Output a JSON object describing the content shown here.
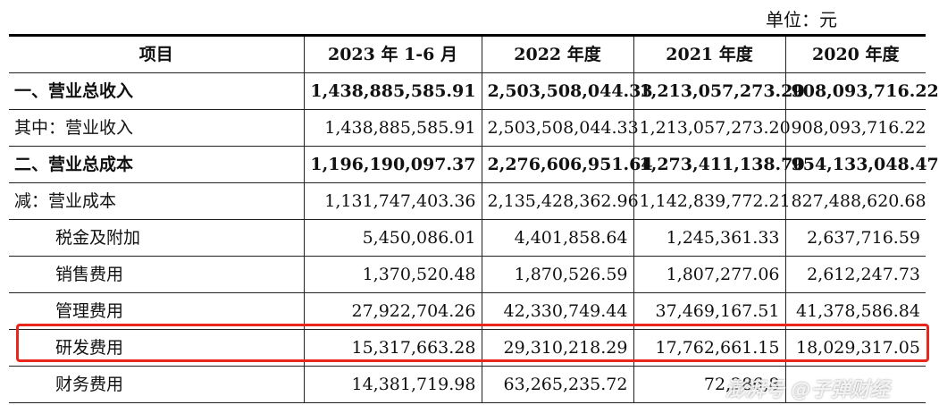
{
  "unit_label": "单位：元",
  "headers": [
    "项目",
    "2023 年 1-6 月",
    "2022 年度",
    "2021 年度",
    "2020 年度"
  ],
  "rows": [
    {
      "label": "一、营业总收入",
      "values": [
        "1,438,885,585.91",
        "2,503,508,044.33",
        "1,213,057,273.20",
        "908,093,716.22"
      ]
    },
    {
      "label": "其中：营业收入",
      "values": [
        "1,438,885,585.91",
        "2,503,508,044.33",
        "1,213,057,273.20",
        "908,093,716.22"
      ]
    },
    {
      "label": "二、营业总成本",
      "values": [
        "1,196,190,097.37",
        "2,276,606,951.64",
        "1,273,411,138.70",
        "954,133,048.47"
      ]
    },
    {
      "label": "减：营业成本",
      "values": [
        "1,131,747,403.36",
        "2,135,428,362.96",
        "1,142,839,772.21",
        "827,488,620.68"
      ]
    },
    {
      "label": "税金及附加",
      "values": [
        "5,450,086.01",
        "4,401,858.64",
        "1,245,361.33",
        "2,637,716.59"
      ]
    },
    {
      "label": "销售费用",
      "values": [
        "1,370,520.48",
        "1,870,526.59",
        "1,807,277.06",
        "2,612,247.73"
      ]
    },
    {
      "label": "管理费用",
      "values": [
        "27,922,704.26",
        "42,330,749.44",
        "37,469,167.51",
        "41,378,586.84"
      ]
    },
    {
      "label": "研发费用",
      "values": [
        "15,317,663.28",
        "29,310,218.29",
        "17,762,661.15",
        "18,029,317.05"
      ]
    },
    {
      "label": "财务费用",
      "values": [
        "14,381,719.98",
        "63,265,235.72",
        "72,286,8",
        ""
      ]
    }
  ],
  "watermark": "澎湃号 @子弹财经",
  "colors": {
    "highlight": "#e8271c"
  }
}
